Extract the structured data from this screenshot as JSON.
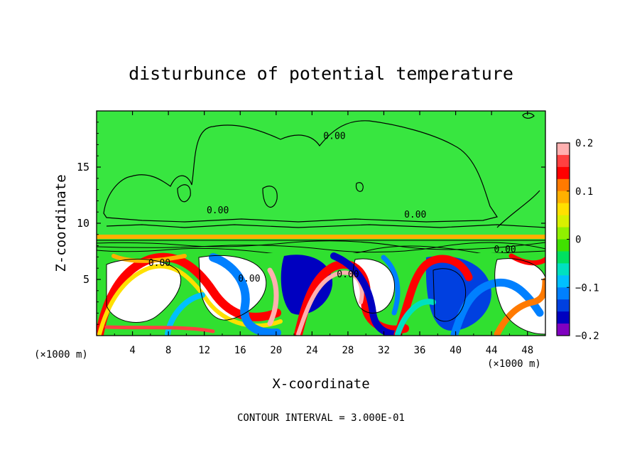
{
  "chart_data": {
    "type": "heatmap",
    "title": "disturbunce of potential temperature",
    "xlabel": "X-coordinate",
    "ylabel": "Z-coordinate",
    "x_unit_left": "(×1000 m)",
    "x_unit_right": "(×1000 m)",
    "footer": "CONTOUR INTERVAL = 3.000E-01",
    "xlim": [
      0,
      50
    ],
    "ylim": [
      0,
      20
    ],
    "x_ticks": [
      4,
      8,
      12,
      16,
      20,
      24,
      28,
      32,
      36,
      40,
      44,
      48
    ],
    "y_ticks": [
      5,
      10,
      15
    ],
    "colorbar": {
      "vmin": -0.2,
      "vmax": 0.2,
      "tick_values": [
        0.2,
        0.1,
        0,
        -0.1,
        -0.2
      ],
      "tick_labels": [
        "0.2",
        "0.1",
        "0",
        "−0.1",
        "−0.2"
      ],
      "colors": [
        "#ffb0b0",
        "#ff4040",
        "#ff0000",
        "#ff7a00",
        "#ffb000",
        "#ffe000",
        "#d8f000",
        "#90f000",
        "#40e000",
        "#00e060",
        "#00e0c0",
        "#00c0ff",
        "#0080ff",
        "#0040e0",
        "#0000c0",
        "#8000c0"
      ]
    },
    "contour_labels": [
      {
        "text": "0.00",
        "x": 26.5,
        "y": 17.5
      },
      {
        "text": "0.00",
        "x": 13.5,
        "y": 10.9
      },
      {
        "text": "0.00",
        "x": 35.5,
        "y": 10.5
      },
      {
        "text": "0.00",
        "x": 45.5,
        "y": 7.4
      },
      {
        "text": "0.00",
        "x": 7.0,
        "y": 6.2
      },
      {
        "text": "0.00",
        "x": 28.0,
        "y": 5.2
      },
      {
        "text": "0.00",
        "x": 17.0,
        "y": 4.8
      }
    ]
  }
}
